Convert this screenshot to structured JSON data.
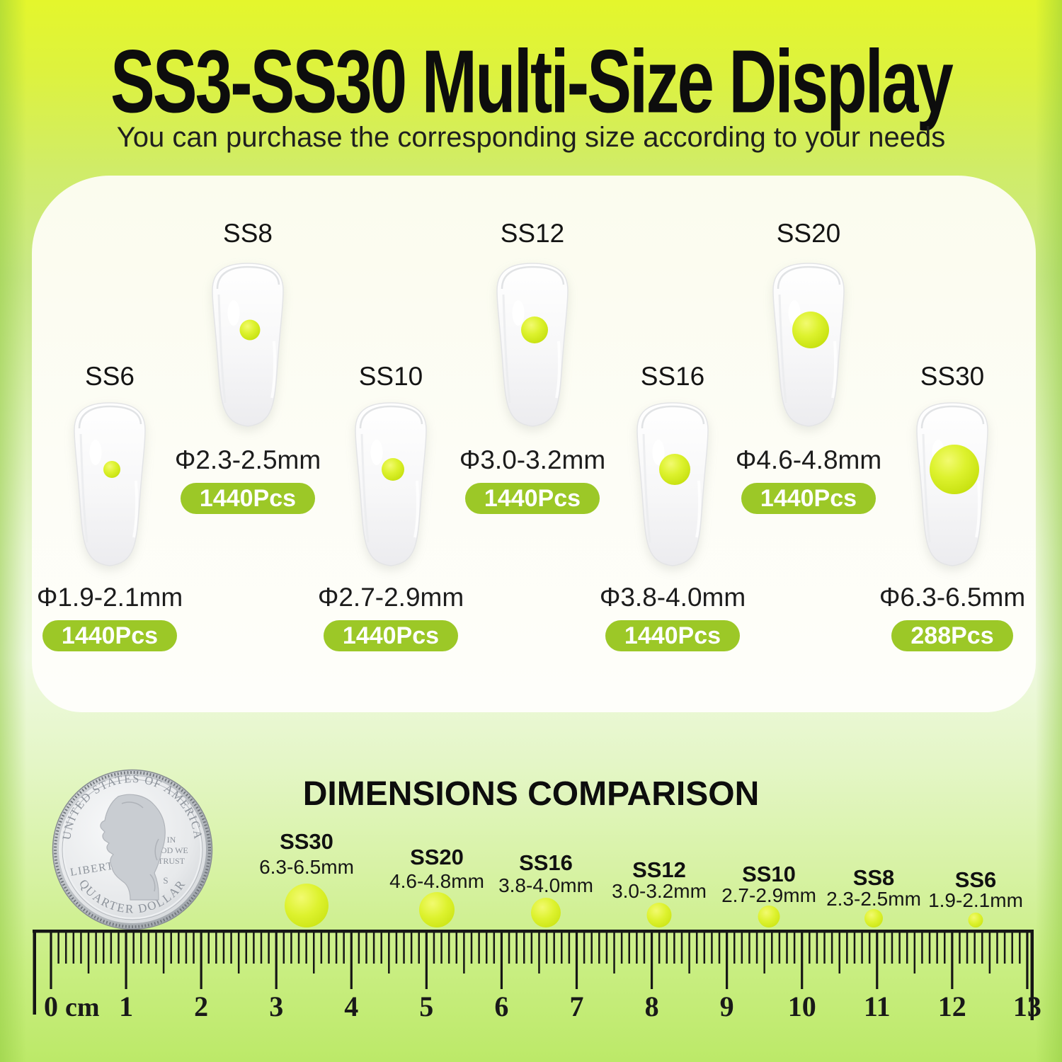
{
  "header": {
    "title": "SS3-SS30 Multi-Size Display",
    "subtitle": "You can purchase the corresponding size according to your needs"
  },
  "sizes": [
    {
      "name": "SS8",
      "diameter": "Φ2.3-2.5mm",
      "count": "1440Pcs"
    },
    {
      "name": "SS12",
      "diameter": "Φ3.0-3.2mm",
      "count": "1440Pcs"
    },
    {
      "name": "SS20",
      "diameter": "Φ4.6-4.8mm",
      "count": "1440Pcs"
    },
    {
      "name": "SS6",
      "diameter": "Φ1.9-2.1mm",
      "count": "1440Pcs"
    },
    {
      "name": "SS10",
      "diameter": "Φ2.7-2.9mm",
      "count": "1440Pcs"
    },
    {
      "name": "SS16",
      "diameter": "Φ3.8-4.0mm",
      "count": "1440Pcs"
    },
    {
      "name": "SS30",
      "diameter": "Φ6.3-6.5mm",
      "count": "288Pcs"
    }
  ],
  "comparison": {
    "heading": "DIMENSIONS COMPARISON",
    "coin": {
      "top_text": "UNITED STATES OF AMERICA",
      "left_text": "LIBERTY",
      "motto_line1": "IN",
      "motto_line2": "GOD WE",
      "motto_line3": "TRUST",
      "mint_mark": "S",
      "bottom_text": "QUARTER DOLLAR"
    },
    "items": [
      {
        "name": "SS30",
        "size": "6.3-6.5mm"
      },
      {
        "name": "SS20",
        "size": "4.6-4.8mm"
      },
      {
        "name": "SS16",
        "size": "3.8-4.0mm"
      },
      {
        "name": "SS12",
        "size": "3.0-3.2mm"
      },
      {
        "name": "SS10",
        "size": "2.7-2.9mm"
      },
      {
        "name": "SS8",
        "size": "2.3-2.5mm"
      },
      {
        "name": "SS6",
        "size": "1.9-2.1mm"
      }
    ],
    "ruler": {
      "unit_label": "cm",
      "numbers": [
        "0",
        "1",
        "2",
        "3",
        "4",
        "5",
        "6",
        "7",
        "8",
        "9",
        "10",
        "11",
        "12",
        "13"
      ]
    }
  },
  "colors": {
    "accent_green": "#9cc827",
    "gem_yellow": "#ddf22e",
    "background_top": "#e4f62c",
    "background_bottom": "#bce968",
    "card_white": "#fcfdf3"
  }
}
